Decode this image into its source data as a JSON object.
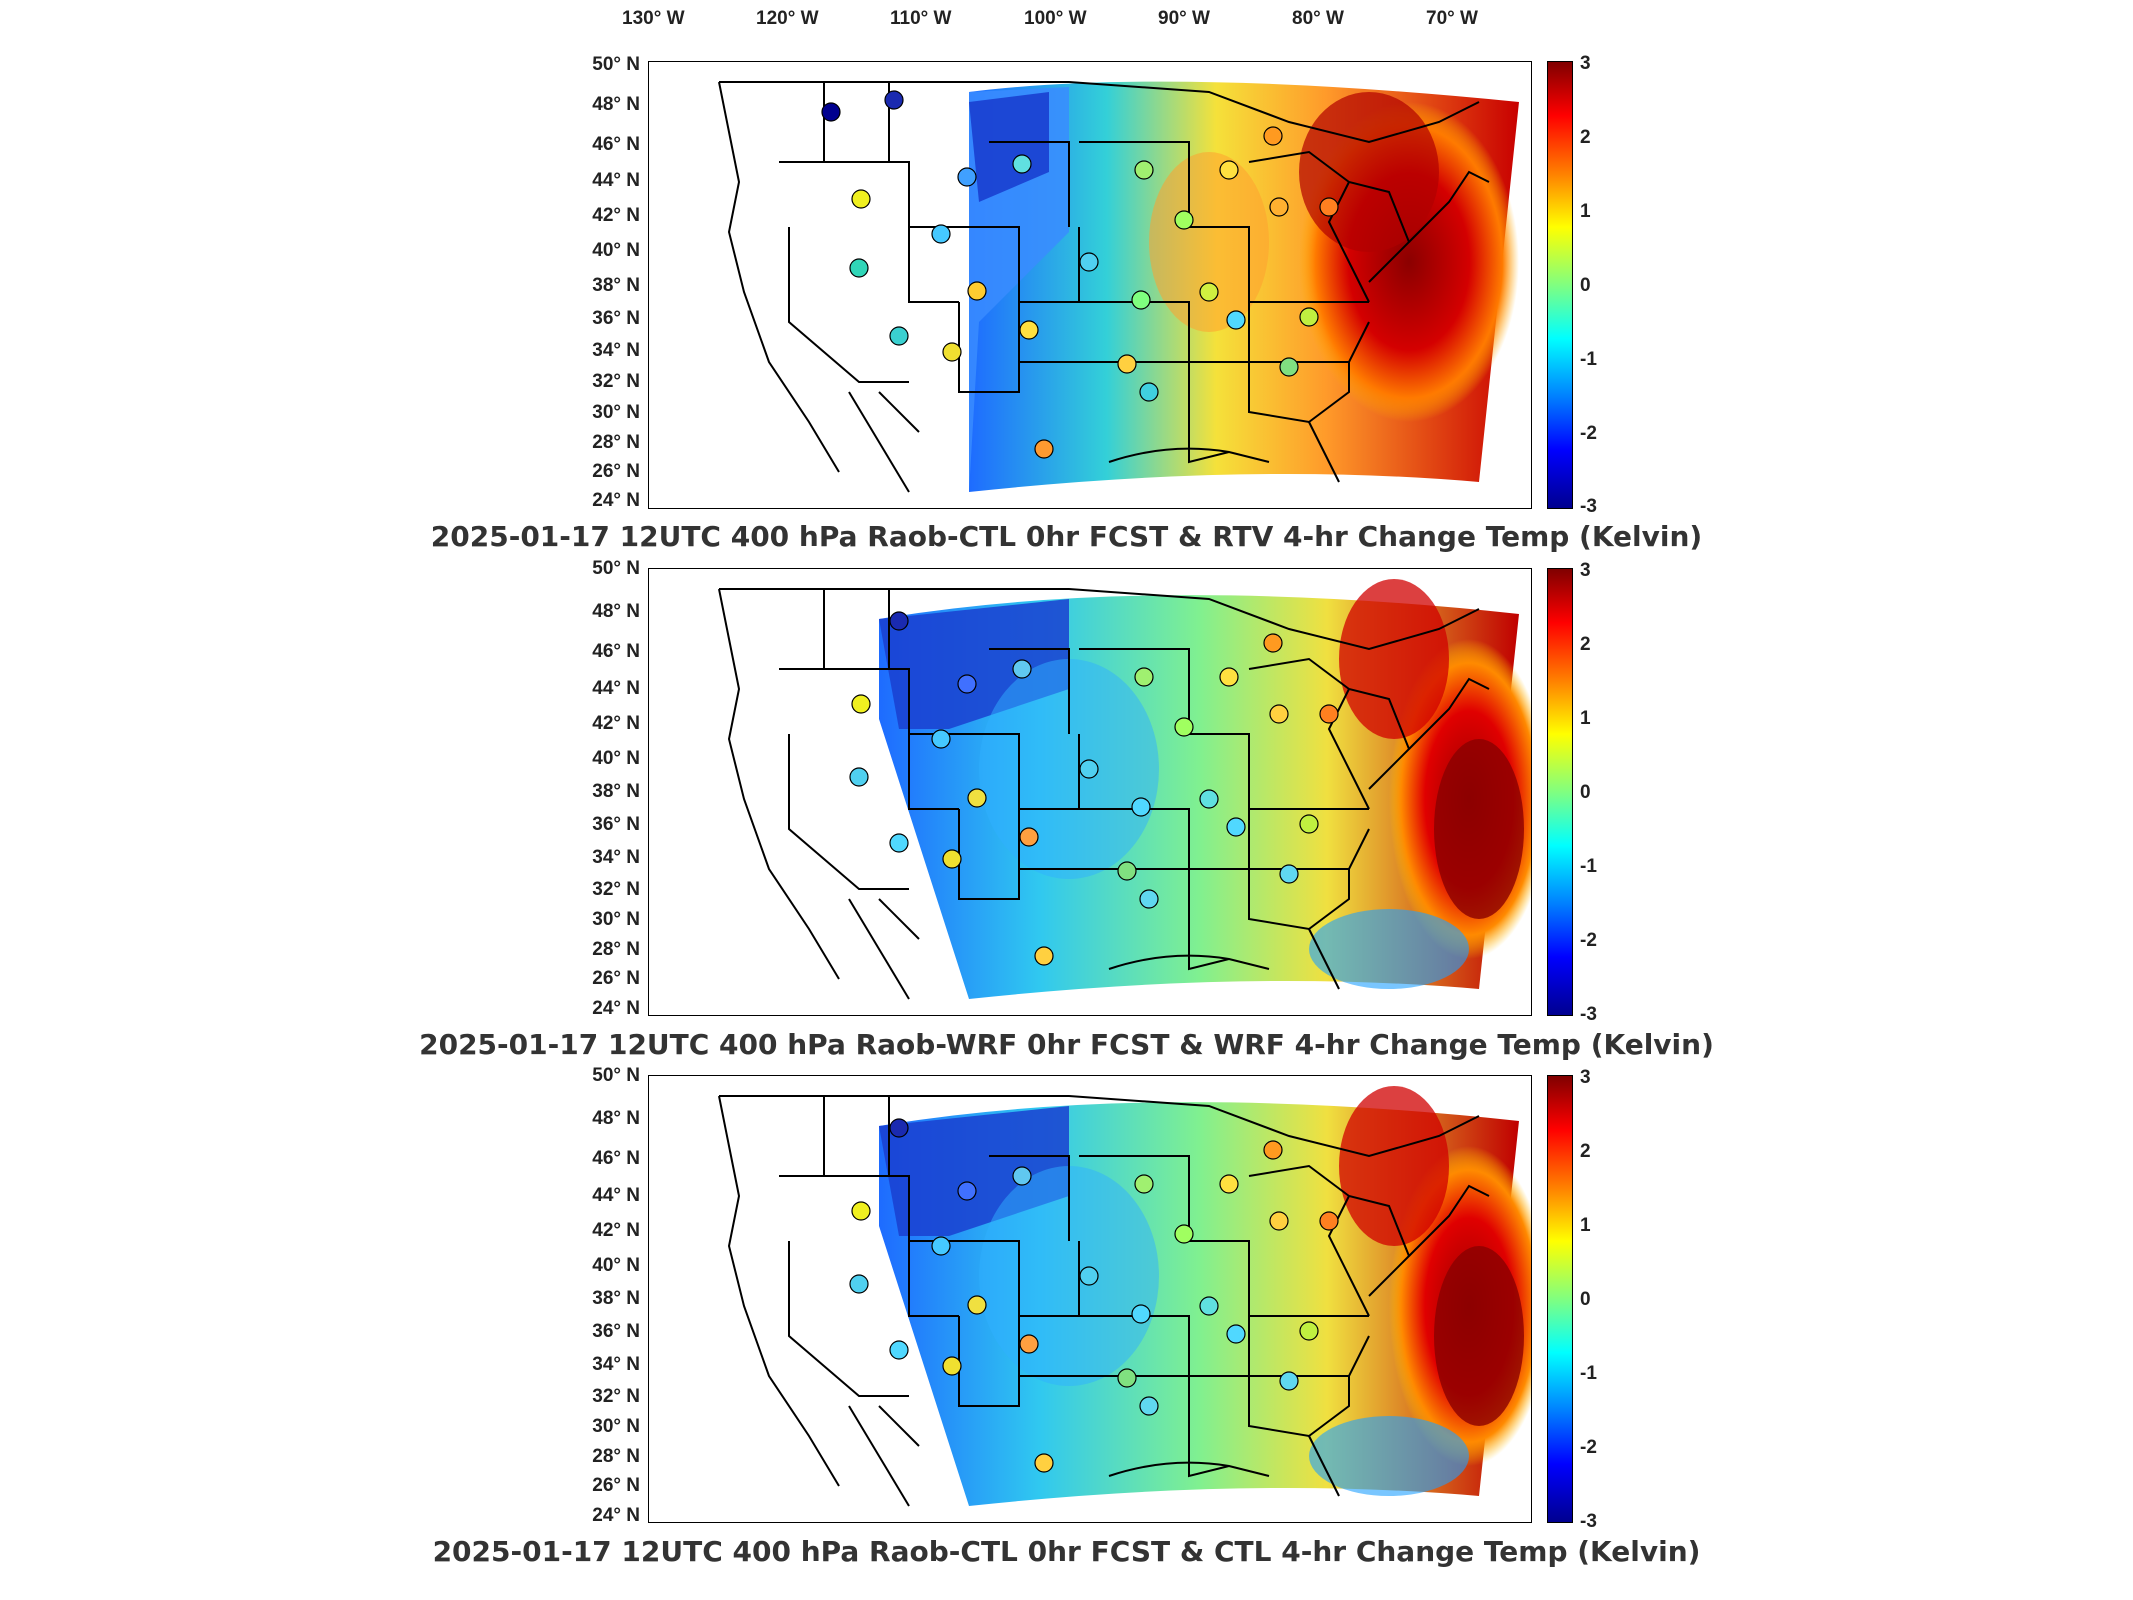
{
  "longitude_labels": [
    "130° W",
    "120° W",
    "110° W",
    "100° W",
    "90° W",
    "80° W",
    "70° W"
  ],
  "latitude_labels": [
    "50° N",
    "48° N",
    "46° N",
    "44° N",
    "42° N",
    "40° N",
    "38° N",
    "36° N",
    "34° N",
    "32° N",
    "30° N",
    "28° N",
    "26° N",
    "24° N"
  ],
  "colorbar_ticks": [
    "3",
    "2",
    "1",
    "0",
    "-1",
    "-2",
    "-3"
  ],
  "panels": [
    {
      "title": "2025-01-17 12UTC 400 hPa Raob-CTL 0hr FCST & RTV 4-hr Change Temp (Kelvin)"
    },
    {
      "title": "2025-01-17 12UTC 400 hPa Raob-WRF 0hr FCST & WRF 4-hr Change Temp (Kelvin)"
    },
    {
      "title": "2025-01-17 12UTC 400 hPa Raob-CTL 0hr FCST & CTL 4-hr Change Temp (Kelvin)"
    }
  ],
  "colors": {
    "max": "#800000",
    "zero": "#80ff80",
    "min": "#00008f"
  },
  "icons": [
    "station-marker-icon"
  ]
}
